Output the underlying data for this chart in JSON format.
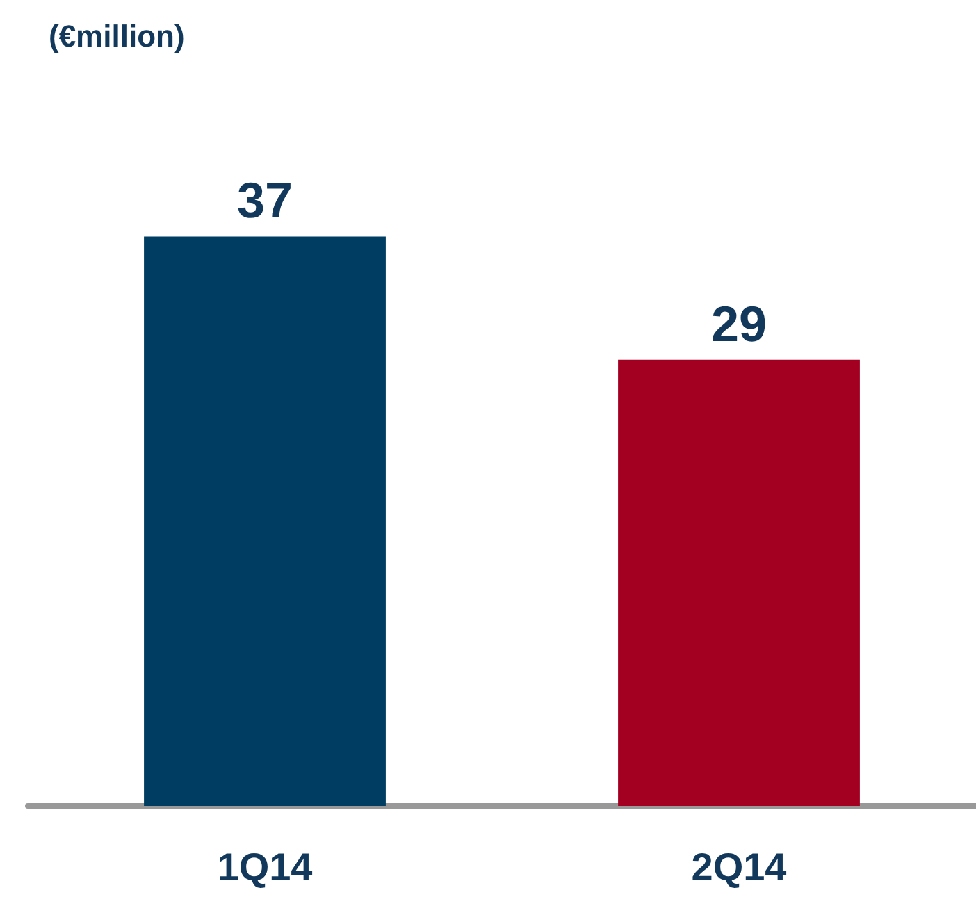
{
  "chart_data": {
    "type": "bar",
    "title": "(€million)",
    "categories": [
      "1Q14",
      "2Q14"
    ],
    "values": [
      37,
      29
    ],
    "colors": [
      "#003d62",
      "#a30021"
    ],
    "data_labels": true
  }
}
